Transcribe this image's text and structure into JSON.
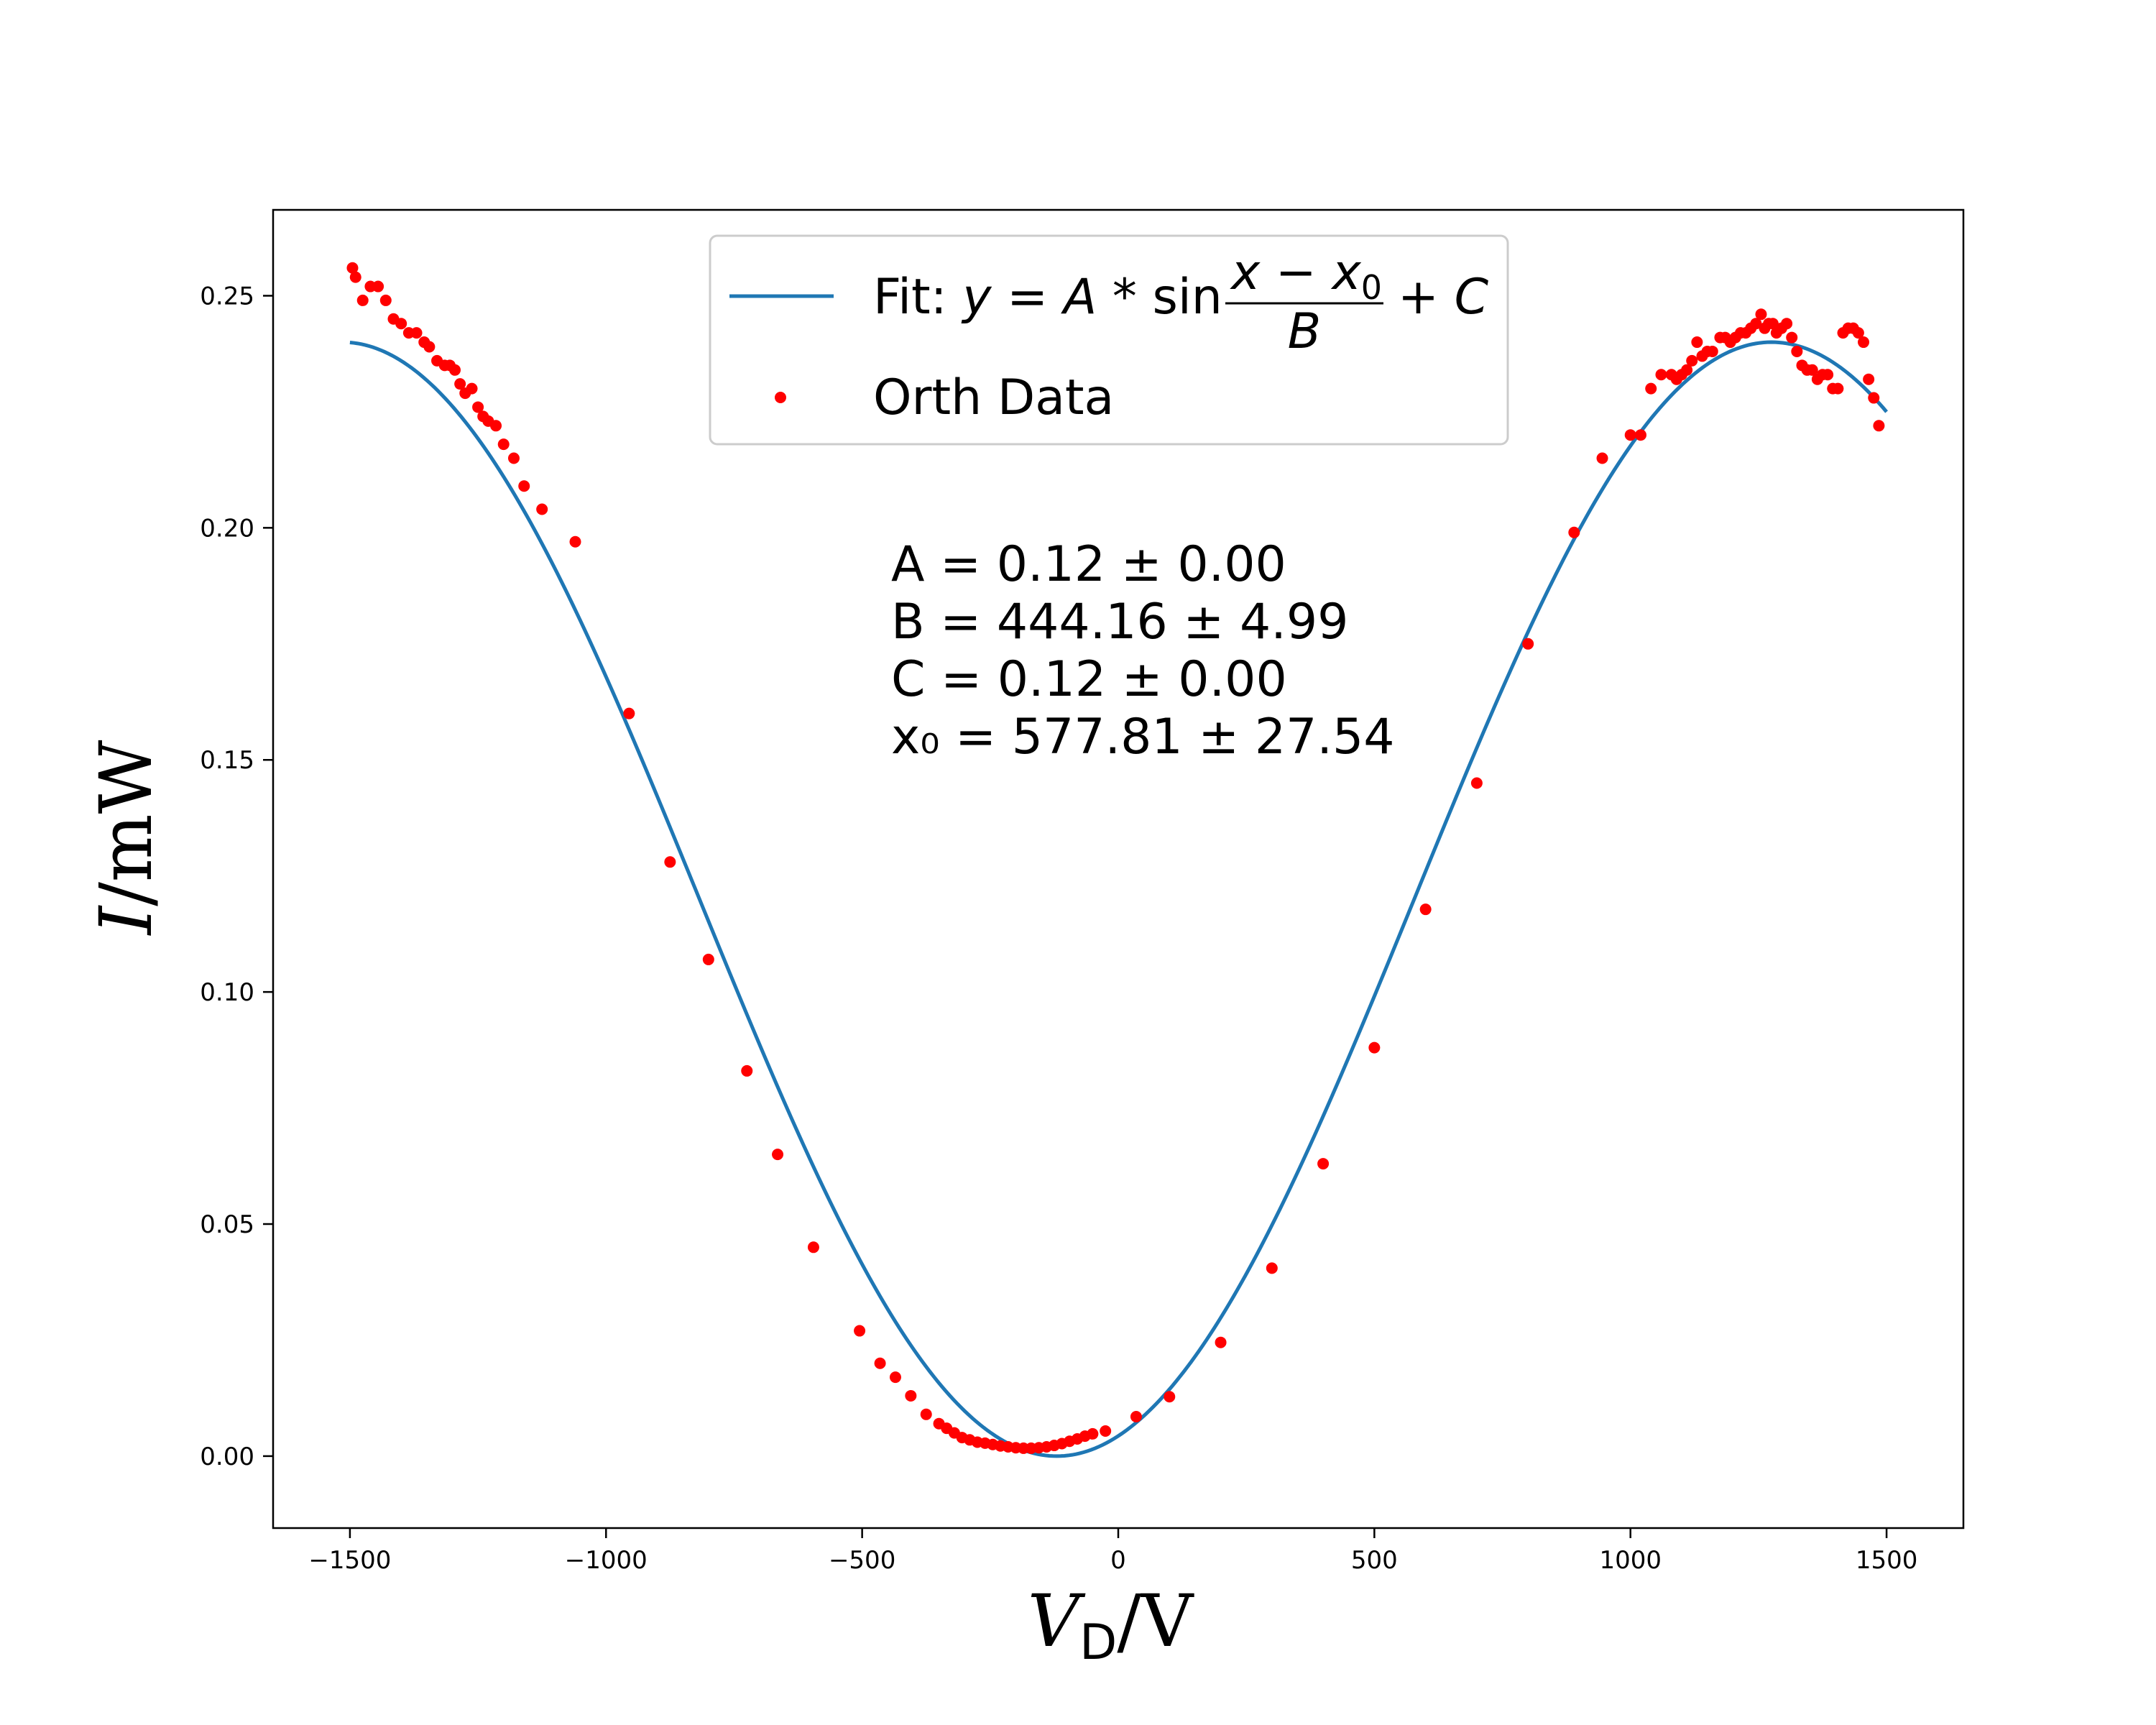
{
  "chart_data": {
    "type": "scatter",
    "xlabel": "V_D/V",
    "ylabel": "I/mW",
    "xlim": [
      -1650,
      1650
    ],
    "ylim": [
      -0.0155,
      0.2685
    ],
    "x_ticks": [
      -1500,
      -1000,
      -500,
      0,
      500,
      1000,
      1500
    ],
    "x_tick_labels": [
      "−1500",
      "−1000",
      "−500",
      "0",
      "500",
      "1000",
      "1500"
    ],
    "y_ticks": [
      0.0,
      0.05,
      0.1,
      0.15,
      0.2,
      0.25
    ],
    "y_tick_labels": [
      "0.00",
      "0.05",
      "0.10",
      "0.15",
      "0.20",
      "0.25"
    ],
    "grid": false,
    "legend_position": "top-center",
    "fit": {
      "name": "Fit: y = A * sin (x − x₀)/B + C",
      "color": "#1f77b4",
      "x_range": [
        -1500,
        1500
      ],
      "model": "A*sin((x - x0)/B) + C",
      "A": 0.12,
      "B": 444.16,
      "C": 0.12,
      "x0": 577.81
    },
    "series": [
      {
        "name": "Orth Data",
        "color": "#ff0000",
        "points": [
          [
            -1495,
            0.256
          ],
          [
            -1489,
            0.254
          ],
          [
            -1475,
            0.249
          ],
          [
            -1460,
            0.252
          ],
          [
            -1445,
            0.252
          ],
          [
            -1430,
            0.249
          ],
          [
            -1415,
            0.245
          ],
          [
            -1400,
            0.244
          ],
          [
            -1385,
            0.242
          ],
          [
            -1370,
            0.242
          ],
          [
            -1355,
            0.24
          ],
          [
            -1345,
            0.239
          ],
          [
            -1330,
            0.236
          ],
          [
            -1315,
            0.235
          ],
          [
            -1305,
            0.235
          ],
          [
            -1295,
            0.234
          ],
          [
            -1285,
            0.231
          ],
          [
            -1275,
            0.229
          ],
          [
            -1262,
            0.23
          ],
          [
            -1250,
            0.226
          ],
          [
            -1240,
            0.224
          ],
          [
            -1230,
            0.223
          ],
          [
            -1215,
            0.222
          ],
          [
            -1200,
            0.218
          ],
          [
            -1180,
            0.215
          ],
          [
            -1160,
            0.209
          ],
          [
            -1125,
            0.204
          ],
          [
            -1060,
            0.197
          ],
          [
            -955,
            0.16
          ],
          [
            -875,
            0.128
          ],
          [
            -800,
            0.107
          ],
          [
            -725,
            0.083
          ],
          [
            -665,
            0.065
          ],
          [
            -595,
            0.045
          ],
          [
            -505,
            0.027
          ],
          [
            -465,
            0.02
          ],
          [
            -435,
            0.017
          ],
          [
            -405,
            0.013
          ],
          [
            -375,
            0.009
          ],
          [
            -350,
            0.007
          ],
          [
            -335,
            0.006
          ],
          [
            -320,
            0.005
          ],
          [
            -305,
            0.004
          ],
          [
            -290,
            0.0035
          ],
          [
            -275,
            0.003
          ],
          [
            -260,
            0.0028
          ],
          [
            -245,
            0.0025
          ],
          [
            -230,
            0.0022
          ],
          [
            -215,
            0.002
          ],
          [
            -200,
            0.0018
          ],
          [
            -185,
            0.0017
          ],
          [
            -170,
            0.0017
          ],
          [
            -155,
            0.0018
          ],
          [
            -140,
            0.002
          ],
          [
            -125,
            0.0023
          ],
          [
            -110,
            0.0027
          ],
          [
            -95,
            0.0032
          ],
          [
            -80,
            0.0037
          ],
          [
            -65,
            0.0043
          ],
          [
            -50,
            0.0048
          ],
          [
            -25,
            0.0054
          ],
          [
            35,
            0.0085
          ],
          [
            100,
            0.0128
          ],
          [
            200,
            0.0245
          ],
          [
            300,
            0.0405
          ],
          [
            400,
            0.063
          ],
          [
            500,
            0.088
          ],
          [
            600,
            0.1178
          ],
          [
            700,
            0.145
          ],
          [
            800,
            0.175
          ],
          [
            890,
            0.199
          ],
          [
            945,
            0.215
          ],
          [
            1000,
            0.22
          ],
          [
            1020,
            0.22
          ],
          [
            1040,
            0.23
          ],
          [
            1060,
            0.233
          ],
          [
            1080,
            0.233
          ],
          [
            1090,
            0.232
          ],
          [
            1100,
            0.233
          ],
          [
            1110,
            0.234
          ],
          [
            1120,
            0.236
          ],
          [
            1130,
            0.24
          ],
          [
            1140,
            0.237
          ],
          [
            1150,
            0.238
          ],
          [
            1160,
            0.238
          ],
          [
            1175,
            0.241
          ],
          [
            1185,
            0.241
          ],
          [
            1195,
            0.24
          ],
          [
            1205,
            0.241
          ],
          [
            1215,
            0.242
          ],
          [
            1225,
            0.242
          ],
          [
            1235,
            0.243
          ],
          [
            1245,
            0.244
          ],
          [
            1255,
            0.246
          ],
          [
            1262,
            0.243
          ],
          [
            1270,
            0.244
          ],
          [
            1278,
            0.244
          ],
          [
            1285,
            0.242
          ],
          [
            1295,
            0.243
          ],
          [
            1305,
            0.244
          ],
          [
            1315,
            0.241
          ],
          [
            1325,
            0.238
          ],
          [
            1335,
            0.235
          ],
          [
            1345,
            0.234
          ],
          [
            1355,
            0.234
          ],
          [
            1365,
            0.232
          ],
          [
            1375,
            0.233
          ],
          [
            1385,
            0.233
          ],
          [
            1395,
            0.23
          ],
          [
            1405,
            0.23
          ],
          [
            1415,
            0.242
          ],
          [
            1425,
            0.243
          ],
          [
            1435,
            0.243
          ],
          [
            1445,
            0.242
          ],
          [
            1455,
            0.24
          ],
          [
            1465,
            0.232
          ],
          [
            1475,
            0.228
          ],
          [
            1485,
            0.222
          ]
        ]
      }
    ],
    "annotations": [
      "A = 0.12 ± 0.00",
      "B = 444.16 ± 4.99",
      "C = 0.12 ± 0.00",
      "x₀ = 577.81 ± 27.54"
    ]
  }
}
